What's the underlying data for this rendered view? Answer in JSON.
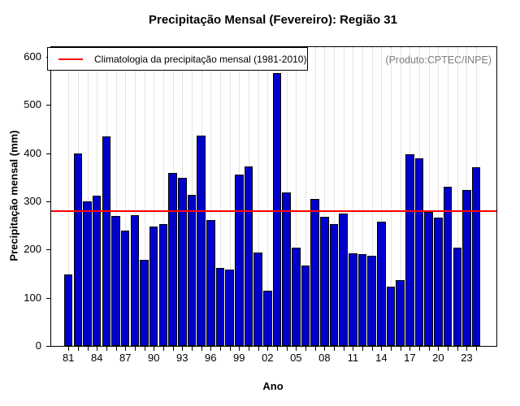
{
  "title": "Precipitação Mensal (Fevereiro): Região 31",
  "watermark": "(Produto:CPTEC/INPE)",
  "chart_data": {
    "type": "bar",
    "title": "Precipitação Mensal (Fevereiro): Região 31",
    "xlabel": "Ano",
    "ylabel": "Precipitação mensal (mm)",
    "ylim": [
      0,
      620
    ],
    "yticks": [
      0,
      100,
      200,
      300,
      400,
      500,
      600
    ],
    "grid": "vertical-dotted",
    "legend_position": "top-left",
    "legend_label": "Climatologia da precipitação mensal (1981-2010)",
    "climatology_value": 280,
    "years": [
      1981,
      1982,
      1983,
      1984,
      1985,
      1986,
      1987,
      1988,
      1989,
      1990,
      1991,
      1992,
      1993,
      1994,
      1995,
      1996,
      1997,
      1998,
      1999,
      2000,
      2001,
      2002,
      2003,
      2004,
      2005,
      2006,
      2007,
      2008,
      2009,
      2010,
      2011,
      2012,
      2013,
      2014,
      2015,
      2016,
      2017,
      2018,
      2019,
      2020,
      2021,
      2022,
      2023,
      2024
    ],
    "values": [
      148,
      400,
      300,
      312,
      434,
      270,
      240,
      272,
      178,
      248,
      253,
      359,
      348,
      313,
      436,
      261,
      161,
      159,
      356,
      372,
      194,
      114,
      566,
      318,
      204,
      167,
      305,
      268,
      252,
      275,
      192,
      190,
      187,
      257,
      123,
      136,
      397,
      389,
      278,
      267,
      331,
      204,
      324,
      371
    ],
    "xtick_labels": [
      "81",
      "84",
      "87",
      "90",
      "93",
      "96",
      "99",
      "02",
      "05",
      "08",
      "11",
      "14",
      "17",
      "20",
      "23"
    ],
    "xtick_every": 3,
    "colors": {
      "bar": "#0000cd",
      "bar_border": "#000000",
      "climatology_line": "#ff0000",
      "grid": "#c9c9c9",
      "watermark_text": "#7f7f7f"
    }
  }
}
